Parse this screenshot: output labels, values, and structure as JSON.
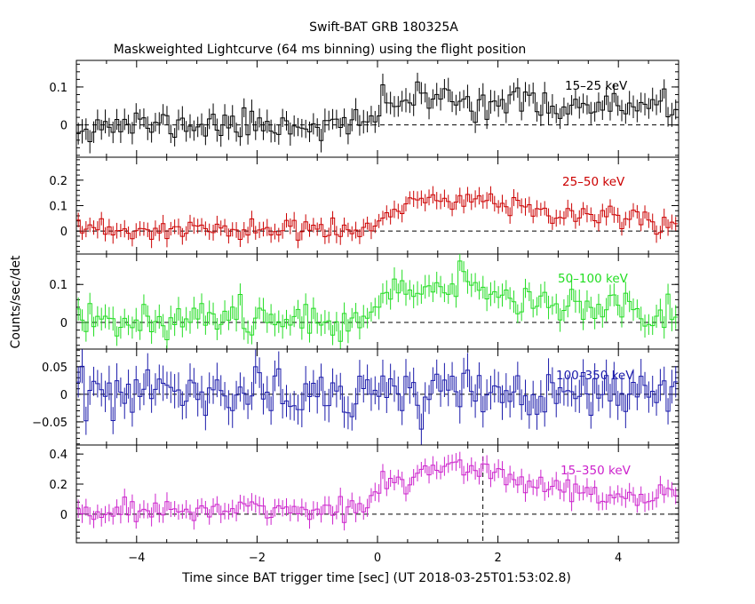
{
  "header": {
    "title": "Swift-BAT GRB 180325A",
    "subtitle": "Maskweighted Lightcurve (64 ms binning) using the flight position"
  },
  "chart_data": {
    "type": "line",
    "title": "Swift-BAT GRB 180325A",
    "subtitle": "Maskweighted Lightcurve (64 ms binning) using the flight position",
    "xlabel": "Time since BAT trigger time [sec] (UT 2018-03-25T01:53:02.8)",
    "ylabel": "Counts/sec/det",
    "xlim": [
      -5,
      5
    ],
    "x_ticks": [
      -4,
      -2,
      0,
      2,
      4
    ],
    "x_tick_labels": [
      "−4",
      "−2",
      "0",
      "2",
      "4"
    ],
    "bin_width_sec": 0.064,
    "marker_time": 1.75,
    "panels": [
      {
        "band": "15–25 keV",
        "color": "#000000",
        "ylim": [
          -0.085,
          0.17
        ],
        "yticks": [
          0,
          0.1
        ],
        "ytick_labels": [
          "0",
          "0.1"
        ],
        "profile": [
          [
            -5,
            0
          ],
          [
            -0.1,
            0
          ],
          [
            0.05,
            0.06
          ],
          [
            1,
            0.07
          ],
          [
            2,
            0.06
          ],
          [
            3,
            0.05
          ],
          [
            5,
            0.04
          ]
        ],
        "noise": 0.02,
        "error": 0.028,
        "seed": 11
      },
      {
        "band": "25–50 keV",
        "color": "#cc0000",
        "ylim": [
          -0.09,
          0.29
        ],
        "yticks": [
          0,
          0.1,
          0.2
        ],
        "ytick_labels": [
          "0",
          "0.1",
          "0.2"
        ],
        "profile": [
          [
            -5,
            0
          ],
          [
            -0.1,
            0.005
          ],
          [
            0.3,
            0.08
          ],
          [
            0.9,
            0.12
          ],
          [
            1.5,
            0.13
          ],
          [
            2.5,
            0.09
          ],
          [
            3.5,
            0.06
          ],
          [
            5,
            0.04
          ]
        ],
        "noise": 0.022,
        "error": 0.03,
        "seed": 23
      },
      {
        "band": "50–100 keV",
        "color": "#22dd22",
        "ylim": [
          -0.07,
          0.18
        ],
        "yticks": [
          0,
          0.1
        ],
        "ytick_labels": [
          "0",
          "0.1"
        ],
        "profile": [
          [
            -5,
            0.01
          ],
          [
            -0.5,
            0.01
          ],
          [
            0.2,
            0.06
          ],
          [
            0.9,
            0.1
          ],
          [
            1.6,
            0.09
          ],
          [
            2.5,
            0.06
          ],
          [
            3.5,
            0.05
          ],
          [
            4.5,
            0.02
          ],
          [
            5,
            0.04
          ]
        ],
        "noise": 0.022,
        "error": 0.028,
        "seed": 37
      },
      {
        "band": "100–350 keV",
        "color": "#1a1aaa",
        "ylim": [
          -0.092,
          0.082
        ],
        "yticks": [
          -0.05,
          0,
          0.05
        ],
        "ytick_labels": [
          "−0.05",
          "0",
          "0.05"
        ],
        "profile": [
          [
            -5,
            0
          ],
          [
            5,
            0
          ]
        ],
        "noise": 0.022,
        "error": 0.028,
        "seed": 53
      },
      {
        "band": "15–350 keV",
        "color": "#cc22cc",
        "ylim": [
          -0.19,
          0.46
        ],
        "yticks": [
          0,
          0.2,
          0.4
        ],
        "ytick_labels": [
          "0",
          "0.2",
          "0.4"
        ],
        "profile": [
          [
            -5,
            0.02
          ],
          [
            -0.2,
            0.03
          ],
          [
            0.1,
            0.2
          ],
          [
            0.9,
            0.32
          ],
          [
            1.5,
            0.3
          ],
          [
            2,
            0.25
          ],
          [
            3,
            0.18
          ],
          [
            4,
            0.12
          ],
          [
            5,
            0.1
          ]
        ],
        "noise": 0.04,
        "error": 0.055,
        "seed": 71
      }
    ]
  }
}
